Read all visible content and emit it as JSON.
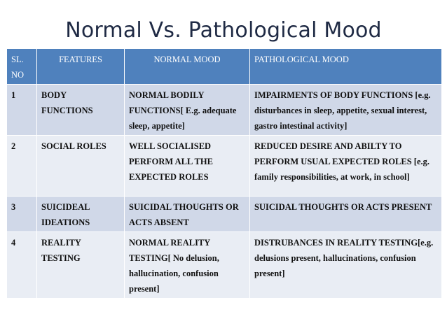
{
  "title": "Normal Vs. Pathological Mood",
  "table": {
    "headers": [
      "SL. NO",
      "FEATURES",
      "NORMAL MOOD",
      "PATHOLOGICAL MOOD"
    ],
    "rows": [
      {
        "sl": "1",
        "feature": "BODY FUNCTIONS",
        "normal": "NORMAL BODILY FUNCTIONS[ E.g. adequate sleep, appetite]",
        "pathological": "IMPAIRMENTS OF BODY FUNCTIONS [e.g. disturbances in sleep, appetite, sexual interest, gastro intestinal activity]"
      },
      {
        "sl": "2",
        "feature": "SOCIAL ROLES",
        "normal": "WELL SOCIALISED PERFORM ALL THE EXPECTED ROLES",
        "pathological": "REDUCED DESIRE AND ABILTY TO PERFORM USUAL EXPECTED ROLES [e.g. family responsibilities, at work, in school]"
      },
      {
        "sl": "3",
        "feature": "SUICIDEAL IDEATIONS",
        "normal": "SUICIDAL THOUGHTS OR ACTS ABSENT",
        "pathological": "SUICIDAL THOUGHTS OR ACTS PRESENT"
      },
      {
        "sl": "4",
        "feature": "REALITY TESTING",
        "normal": "NORMAL REALITY TESTING[ No delusion, hallucination, confusion present]",
        "pathological": "DISTRUBANCES IN REALITY TESTING[e.g. delusions present, hallucinations, confusion present]"
      }
    ]
  },
  "colors": {
    "header_bg": "#4f81bd",
    "row_odd_bg": "#d0d8e8",
    "row_even_bg": "#e9edf4",
    "title_color": "#1f2a44"
  }
}
